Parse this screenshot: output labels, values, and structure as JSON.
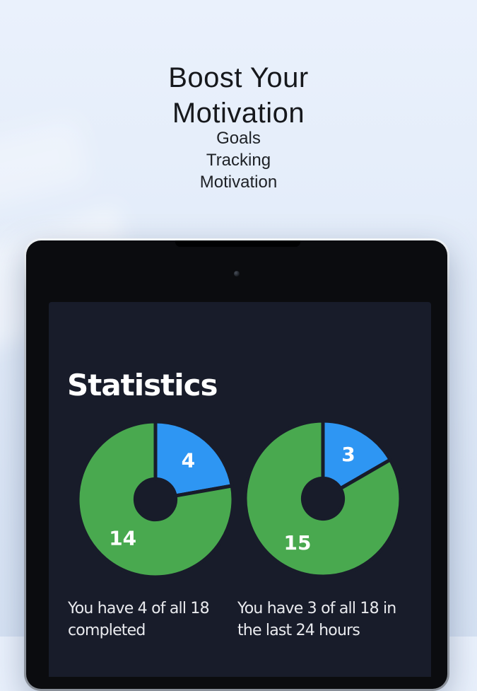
{
  "promo": {
    "title_line1": "Boost Your",
    "title_line2": "Motivation",
    "features": [
      "Goals",
      "Tracking",
      "Motivation"
    ]
  },
  "app": {
    "title": "Statistics"
  },
  "chart_data": [
    {
      "type": "pie",
      "donut": true,
      "total": 18,
      "start_angle_deg": 0,
      "hole_ratio": 0.26,
      "label_radius_ratio": 0.655,
      "slices": [
        {
          "label": "4",
          "value": 4,
          "color": "#2e96f3"
        },
        {
          "label": "14",
          "value": 14,
          "color": "#49a94f"
        }
      ],
      "caption_line1": "You have 4 of all 18",
      "caption_line2": "completed"
    },
    {
      "type": "pie",
      "donut": true,
      "total": 18,
      "start_angle_deg": 0,
      "hole_ratio": 0.26,
      "label_radius_ratio": 0.655,
      "slices": [
        {
          "label": "3",
          "value": 3,
          "color": "#2e96f3"
        },
        {
          "label": "15",
          "value": 15,
          "color": "#49a94f"
        }
      ],
      "caption_line1": "You have 3 of all 18 in",
      "caption_line2": "the last 24 hours"
    }
  ],
  "colors": {
    "screen_bg": "#181c2a",
    "slice_blue": "#2e96f3",
    "slice_green": "#49a94f",
    "pie_label": "#ffffff",
    "caption_text": "#e9eaee"
  }
}
